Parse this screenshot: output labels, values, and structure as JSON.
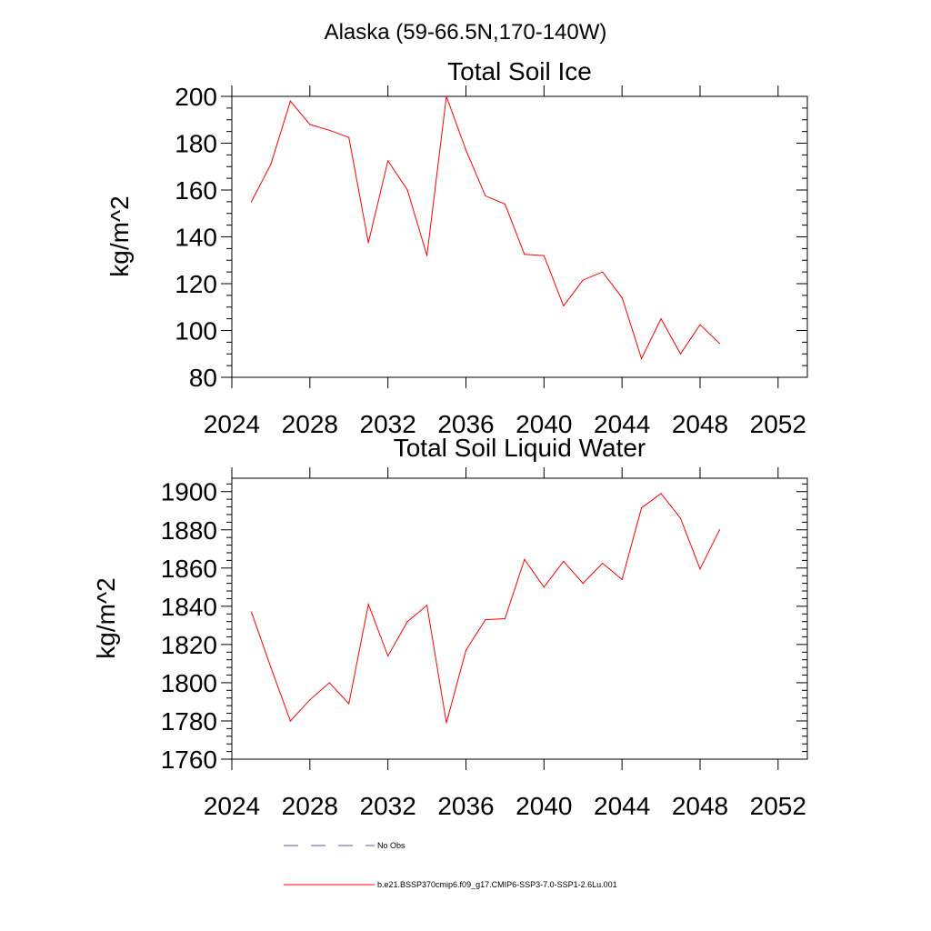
{
  "figure": {
    "title": "Alaska (59-66.5N,170-140W)"
  },
  "chart_data": [
    {
      "type": "line",
      "title": "Total Soil Ice",
      "xlabel": "",
      "ylabel": "kg/m^2",
      "xlim": [
        2024,
        2053.5
      ],
      "ylim": [
        80,
        200
      ],
      "xticks": [
        2024,
        2028,
        2032,
        2036,
        2040,
        2044,
        2048,
        2052
      ],
      "yticks": [
        80,
        100,
        120,
        140,
        160,
        180,
        200
      ],
      "grid": false,
      "series": [
        {
          "color": "#ff0000",
          "x": [
            2025,
            2026,
            2027,
            2028,
            2029,
            2030,
            2031,
            2032,
            2033,
            2034,
            2035,
            2036,
            2037,
            2038,
            2039,
            2040,
            2041,
            2042,
            2043,
            2044,
            2045,
            2046,
            2047,
            2048,
            2049
          ],
          "values": [
            155,
            171,
            198,
            188,
            185.5,
            182.5,
            137.5,
            172.5,
            160,
            132,
            200,
            177,
            157.5,
            154,
            132.5,
            132,
            110.5,
            121.5,
            125,
            114,
            88,
            105,
            90,
            102.5,
            94.5
          ]
        }
      ]
    },
    {
      "type": "line",
      "title": "Total Soil Liquid Water",
      "xlabel": "",
      "ylabel": "kg/m^2",
      "xlim": [
        2024,
        2053.5
      ],
      "ylim": [
        1760,
        1907
      ],
      "xticks": [
        2024,
        2028,
        2032,
        2036,
        2040,
        2044,
        2048,
        2052
      ],
      "yticks": [
        1760,
        1780,
        1800,
        1820,
        1840,
        1860,
        1880,
        1900
      ],
      "grid": false,
      "series": [
        {
          "color": "#ff0000",
          "x": [
            2025,
            2026,
            2027,
            2028,
            2029,
            2030,
            2031,
            2032,
            2033,
            2034,
            2035,
            2036,
            2037,
            2038,
            2039,
            2040,
            2041,
            2042,
            2043,
            2044,
            2045,
            2046,
            2047,
            2048,
            2049
          ],
          "values": [
            1837,
            1808,
            1780,
            1791,
            1800,
            1789,
            1841,
            1814,
            1832,
            1840.5,
            1779,
            1817,
            1833,
            1833.5,
            1864.5,
            1850,
            1863.5,
            1852,
            1862.5,
            1854,
            1891.5,
            1899,
            1886,
            1859.5,
            1880
          ]
        }
      ]
    }
  ],
  "legend": {
    "placement": "bottom",
    "entries": [
      {
        "label": "No Obs",
        "color": "#4f5fa0",
        "style": "dashed"
      },
      {
        "label": "b.e21.BSSP370cmip6.f09_g17.CMIP6-SSP3-7.0-SSP1-2.6Lu.001",
        "color": "#ff0000",
        "style": "solid"
      }
    ]
  }
}
